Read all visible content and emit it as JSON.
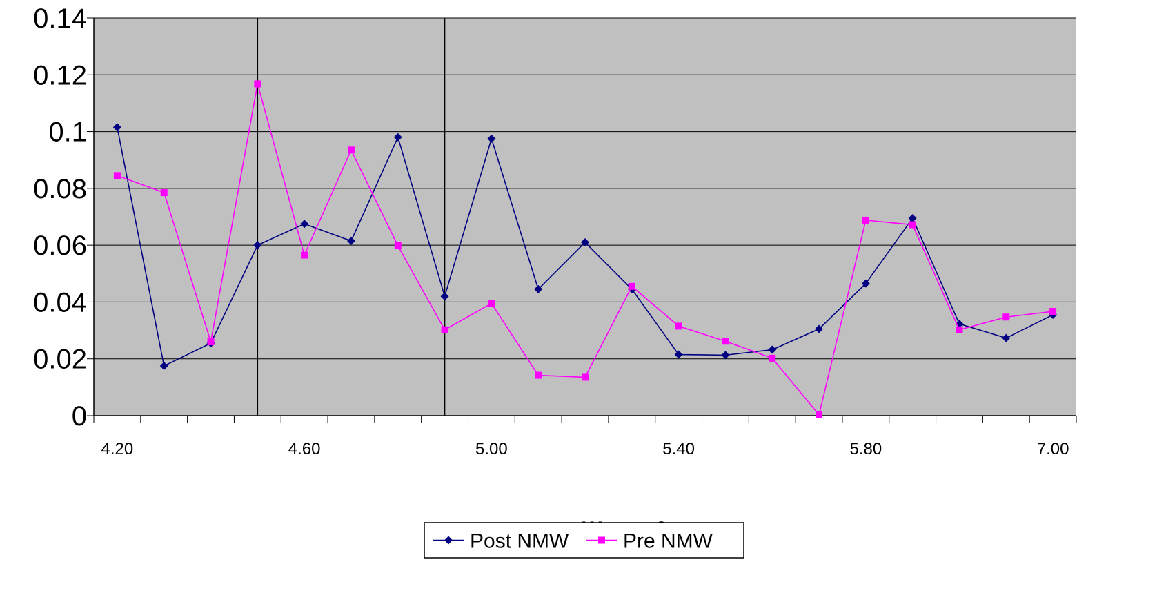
{
  "chart_data": {
    "type": "line",
    "title": "",
    "xlabel": "Wage - £",
    "ylabel": "",
    "ylim": [
      0,
      0.14
    ],
    "y_ticks": [
      "0",
      "0.02",
      "0.04",
      "0.06",
      "0.08",
      "0.1",
      "0.12",
      "0.14"
    ],
    "x_tick_labels": [
      {
        "index": 0,
        "label": "4.20"
      },
      {
        "index": 4,
        "label": "4.60"
      },
      {
        "index": 8,
        "label": "5.00"
      },
      {
        "index": 12,
        "label": "5.40"
      },
      {
        "index": 16,
        "label": "5.80"
      },
      {
        "index": 20,
        "label": "7.00"
      }
    ],
    "category_count": 21,
    "vertical_lines_at_index": [
      3,
      7
    ],
    "grid": true,
    "legend": "bottom",
    "plot_background": "#c0c0c0",
    "series": [
      {
        "name": "Post NMW",
        "color": "#000080",
        "marker": "diamond",
        "values": [
          0.1015,
          0.0175,
          0.0255,
          0.06,
          0.0675,
          0.0615,
          0.098,
          0.042,
          0.0975,
          0.0445,
          0.061,
          0.0445,
          0.0215,
          0.0213,
          0.0232,
          0.0305,
          0.0465,
          0.0695,
          0.0323,
          0.0273,
          0.0355
        ]
      },
      {
        "name": "Pre NMW",
        "color": "#ff00ff",
        "marker": "square",
        "values": [
          0.0845,
          0.0785,
          0.026,
          0.1168,
          0.0565,
          0.0935,
          0.0598,
          0.0302,
          0.0395,
          0.0142,
          0.0135,
          0.0455,
          0.0315,
          0.0262,
          0.0202,
          0.0003,
          0.0688,
          0.0672,
          0.0302,
          0.0347,
          0.0367
        ]
      }
    ]
  }
}
